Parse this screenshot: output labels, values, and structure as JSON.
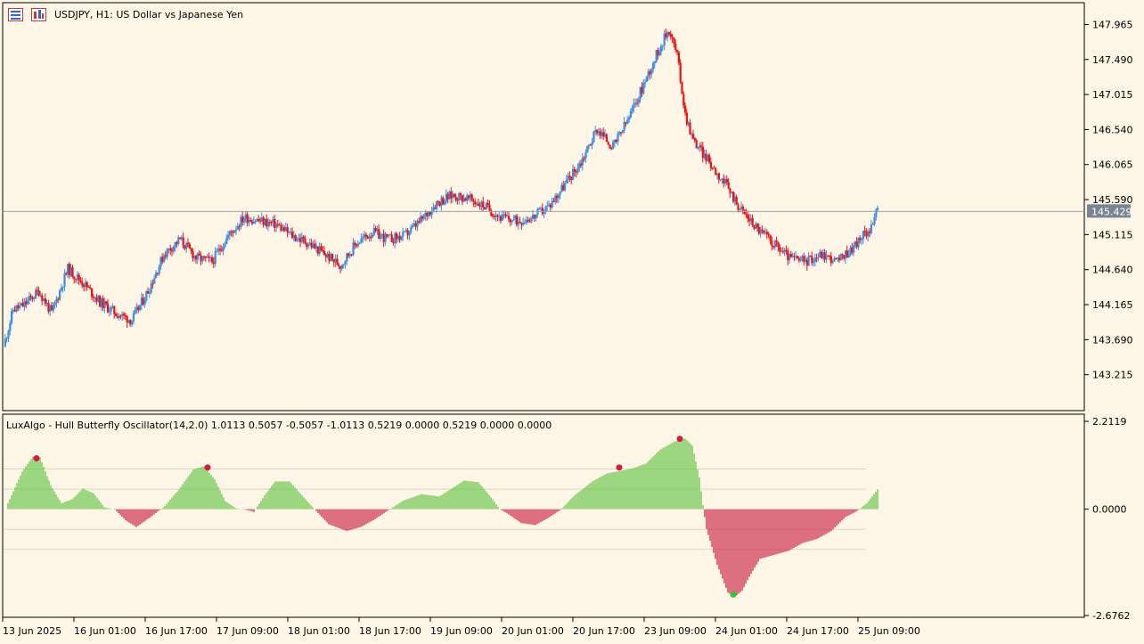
{
  "window": {
    "symbol_title": "USDJPY, H1:  US Dollar vs Japanese Yen",
    "indicator_title": "LuxAlgo - Hull Butterfly Oscillator(14,2.0) 1.0113 0.5057 -0.5057 -1.0113 0.5219 0.0000 0.5219 0.0000 0.0000"
  },
  "icons": [
    "chart-list-icon",
    "indicator-list-icon"
  ],
  "colors": {
    "background": "#fdf6e6",
    "bull": "#3d8ee0",
    "bear": "#ee1111",
    "osc_positive": "#5cc23c",
    "osc_negative": "#c8173a",
    "dot_top": "#d51b41",
    "dot_bottom": "#36c23c",
    "price_tag": "#7b8493"
  },
  "chart_data": [
    {
      "type": "candlestick",
      "title": "USDJPY, H1:  US Dollar vs Japanese Yen",
      "y_ticks": [
        "147.965",
        "147.490",
        "147.015",
        "146.540",
        "146.065",
        "145.590",
        "145.115",
        "144.640",
        "144.165",
        "143.690",
        "143.215"
      ],
      "ylim": [
        142.8,
        148.2
      ],
      "current_price": "145.429",
      "close_path": [
        [
          0,
          143.6
        ],
        [
          6,
          144.1
        ],
        [
          12,
          144.15
        ],
        [
          22,
          144.35
        ],
        [
          30,
          144.05
        ],
        [
          40,
          144.65
        ],
        [
          50,
          144.45
        ],
        [
          60,
          144.2
        ],
        [
          70,
          144.05
        ],
        [
          80,
          143.95
        ],
        [
          90,
          144.35
        ],
        [
          100,
          144.85
        ],
        [
          110,
          145.05
        ],
        [
          120,
          144.8
        ],
        [
          130,
          144.75
        ],
        [
          140,
          145.1
        ],
        [
          150,
          145.35
        ],
        [
          160,
          145.3
        ],
        [
          170,
          145.25
        ],
        [
          180,
          145.1
        ],
        [
          190,
          145.0
        ],
        [
          200,
          144.85
        ],
        [
          210,
          144.7
        ],
        [
          220,
          145.0
        ],
        [
          230,
          145.15
        ],
        [
          240,
          145.05
        ],
        [
          250,
          145.1
        ],
        [
          260,
          145.3
        ],
        [
          270,
          145.55
        ],
        [
          280,
          145.65
        ],
        [
          290,
          145.6
        ],
        [
          300,
          145.5
        ],
        [
          310,
          145.35
        ],
        [
          320,
          145.3
        ],
        [
          330,
          145.35
        ],
        [
          340,
          145.5
        ],
        [
          350,
          145.8
        ],
        [
          360,
          146.1
        ],
        [
          370,
          146.55
        ],
        [
          380,
          146.3
        ],
        [
          390,
          146.7
        ],
        [
          400,
          147.2
        ],
        [
          410,
          147.7
        ],
        [
          415,
          147.9
        ],
        [
          420,
          147.55
        ],
        [
          425,
          146.75
        ],
        [
          430,
          146.4
        ],
        [
          440,
          146.1
        ],
        [
          450,
          145.8
        ],
        [
          460,
          145.45
        ],
        [
          470,
          145.2
        ],
        [
          480,
          145.0
        ],
        [
          490,
          144.8
        ],
        [
          500,
          144.75
        ],
        [
          510,
          144.85
        ],
        [
          520,
          144.75
        ],
        [
          530,
          144.95
        ],
        [
          540,
          145.2
        ],
        [
          545,
          145.43
        ]
      ]
    },
    {
      "type": "bar",
      "title": "LuxAlgo - Hull Butterfly Oscillator(14,2.0)",
      "y_ticks": [
        "2.2119",
        "0.0000",
        "-2.6762"
      ],
      "ylim": [
        -2.6762,
        2.2119
      ],
      "levels": [
        1.0113,
        0.5057,
        -0.5057,
        -1.0113
      ],
      "wave": [
        [
          0,
          0.15
        ],
        [
          8,
          0.95
        ],
        [
          14,
          1.33
        ],
        [
          18,
          1.3
        ],
        [
          24,
          0.6
        ],
        [
          30,
          0.15
        ],
        [
          36,
          0.25
        ],
        [
          42,
          0.52
        ],
        [
          48,
          0.4
        ],
        [
          54,
          0.05
        ],
        [
          60,
          -0.01
        ],
        [
          66,
          -0.28
        ],
        [
          72,
          -0.45
        ],
        [
          80,
          -0.2
        ],
        [
          88,
          0.08
        ],
        [
          96,
          0.5
        ],
        [
          104,
          1.0
        ],
        [
          110,
          1.08
        ],
        [
          116,
          0.75
        ],
        [
          122,
          0.2
        ],
        [
          128,
          0.02
        ],
        [
          134,
          -0.02
        ],
        [
          138,
          -0.07
        ],
        [
          144,
          0.35
        ],
        [
          150,
          0.7
        ],
        [
          158,
          0.7
        ],
        [
          166,
          0.3
        ],
        [
          172,
          0.0
        ],
        [
          180,
          -0.38
        ],
        [
          190,
          -0.55
        ],
        [
          198,
          -0.45
        ],
        [
          206,
          -0.25
        ],
        [
          214,
          -0.01
        ],
        [
          222,
          0.22
        ],
        [
          232,
          0.38
        ],
        [
          242,
          0.32
        ],
        [
          250,
          0.55
        ],
        [
          256,
          0.72
        ],
        [
          264,
          0.68
        ],
        [
          272,
          0.25
        ],
        [
          276,
          0.0
        ],
        [
          280,
          -0.1
        ],
        [
          288,
          -0.35
        ],
        [
          296,
          -0.4
        ],
        [
          304,
          -0.2
        ],
        [
          310,
          -0.02
        ],
        [
          318,
          0.35
        ],
        [
          328,
          0.7
        ],
        [
          336,
          0.9
        ],
        [
          342,
          0.95
        ],
        [
          350,
          1.02
        ],
        [
          358,
          1.15
        ],
        [
          366,
          1.5
        ],
        [
          374,
          1.7
        ],
        [
          380,
          1.78
        ],
        [
          384,
          1.6
        ],
        [
          388,
          0.8
        ],
        [
          390,
          0.1
        ],
        [
          392,
          -0.5
        ],
        [
          398,
          -1.4
        ],
        [
          404,
          -2.1
        ],
        [
          408,
          -2.2
        ],
        [
          412,
          -2.05
        ],
        [
          416,
          -1.7
        ],
        [
          422,
          -1.25
        ],
        [
          430,
          -1.15
        ],
        [
          438,
          -1.05
        ],
        [
          446,
          -0.85
        ],
        [
          454,
          -0.75
        ],
        [
          462,
          -0.55
        ],
        [
          470,
          -0.2
        ],
        [
          476,
          -0.06
        ],
        [
          482,
          0.15
        ],
        [
          488,
          0.5
        ]
      ],
      "markers": [
        {
          "i": 16,
          "v": 1.28,
          "kind": "top"
        },
        {
          "i": 112,
          "v": 1.05,
          "kind": "top"
        },
        {
          "i": 343,
          "v": 1.05,
          "kind": "top"
        },
        {
          "i": 377,
          "v": 1.77,
          "kind": "top"
        },
        {
          "i": 407,
          "v": -2.15,
          "kind": "bottom"
        }
      ]
    }
  ],
  "time_axis": {
    "labels": [
      "13 Jun 2025",
      "16 Jun 01:00",
      "16 Jun 17:00",
      "17 Jun 09:00",
      "18 Jun 01:00",
      "18 Jun 17:00",
      "19 Jun 09:00",
      "20 Jun 01:00",
      "20 Jun 17:00",
      "23 Jun 09:00",
      "24 Jun 01:00",
      "24 Jun 17:00",
      "25 Jun 09:00"
    ]
  }
}
